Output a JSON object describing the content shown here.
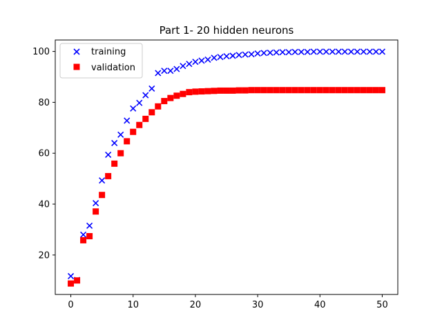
{
  "chart_data": {
    "type": "scatter",
    "title": "Part 1- 20 hidden neurons",
    "xlabel": "",
    "ylabel": "",
    "xlim": [
      -2.5,
      52.5
    ],
    "ylim": [
      4.5,
      104.5
    ],
    "xticks": [
      0,
      10,
      20,
      30,
      40,
      50
    ],
    "yticks": [
      20,
      40,
      60,
      80,
      100
    ],
    "grid": false,
    "legend": "top-left",
    "series": [
      {
        "name": "training",
        "marker": "x",
        "color": "#0000ff",
        "x": [
          0,
          1,
          2,
          3,
          4,
          5,
          6,
          7,
          8,
          9,
          10,
          11,
          12,
          13,
          14,
          15,
          16,
          17,
          18,
          19,
          20,
          21,
          22,
          23,
          24,
          25,
          26,
          27,
          28,
          29,
          30,
          31,
          32,
          33,
          34,
          35,
          36,
          37,
          38,
          39,
          40,
          41,
          42,
          43,
          44,
          45,
          46,
          47,
          48,
          49,
          50
        ],
        "y": [
          11.7,
          10.2,
          28.0,
          31.5,
          40.4,
          49.3,
          59.4,
          64.0,
          67.3,
          72.8,
          77.6,
          79.8,
          82.8,
          85.4,
          91.5,
          92.4,
          92.4,
          93.1,
          94.3,
          95.1,
          95.9,
          96.4,
          96.8,
          97.5,
          97.8,
          98.1,
          98.3,
          98.6,
          98.8,
          98.9,
          99.2,
          99.4,
          99.5,
          99.6,
          99.7,
          99.7,
          99.8,
          99.8,
          99.8,
          99.9,
          99.9,
          99.9,
          99.9,
          99.9,
          99.9,
          99.9,
          99.9,
          99.9,
          99.9,
          99.9,
          99.9
        ]
      },
      {
        "name": "validation",
        "marker": "s",
        "color": "#ff0000",
        "x": [
          0,
          1,
          2,
          3,
          4,
          5,
          6,
          7,
          8,
          9,
          10,
          11,
          12,
          13,
          14,
          15,
          16,
          17,
          18,
          19,
          20,
          21,
          22,
          23,
          24,
          25,
          26,
          27,
          28,
          29,
          30,
          31,
          32,
          33,
          34,
          35,
          36,
          37,
          38,
          39,
          40,
          41,
          42,
          43,
          44,
          45,
          46,
          47,
          48,
          49,
          50
        ],
        "y": [
          8.8,
          10.0,
          25.8,
          27.4,
          37.1,
          43.6,
          51.0,
          55.9,
          60.0,
          64.7,
          68.4,
          71.1,
          73.5,
          76.1,
          78.4,
          80.5,
          81.7,
          82.6,
          83.3,
          84.0,
          84.2,
          84.3,
          84.4,
          84.5,
          84.6,
          84.6,
          84.6,
          84.7,
          84.7,
          84.8,
          84.8,
          84.8,
          84.8,
          84.8,
          84.8,
          84.8,
          84.8,
          84.8,
          84.8,
          84.8,
          84.8,
          84.8,
          84.8,
          84.8,
          84.8,
          84.8,
          84.8,
          84.8,
          84.8,
          84.8,
          84.8
        ]
      }
    ]
  }
}
